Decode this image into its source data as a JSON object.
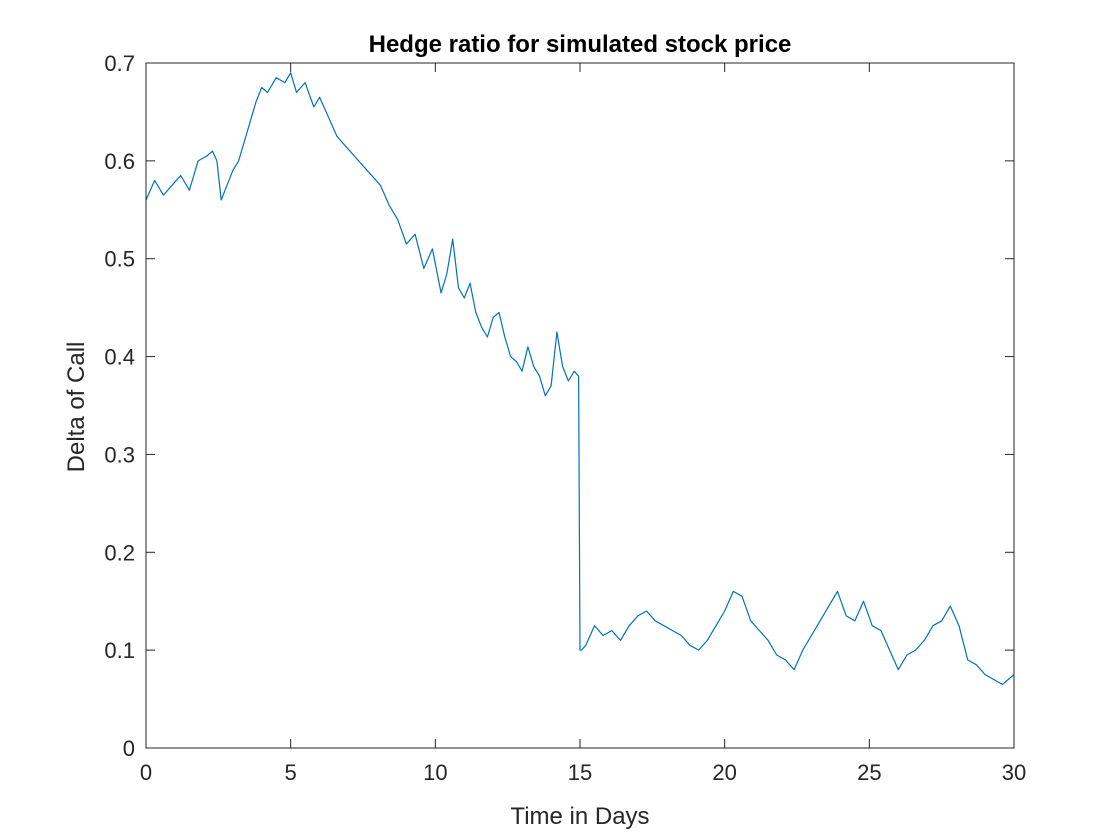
{
  "chart_data": {
    "type": "line",
    "title": "Hedge ratio for simulated stock price",
    "xlabel": "Time in Days",
    "ylabel": "Delta of Call",
    "xlim": [
      0,
      30
    ],
    "ylim": [
      0,
      0.7
    ],
    "xticks": [
      0,
      5,
      10,
      15,
      20,
      25,
      30
    ],
    "yticks": [
      0,
      0.1,
      0.2,
      0.3,
      0.4,
      0.5,
      0.6,
      0.7
    ],
    "xtick_labels": [
      "0",
      "5",
      "10",
      "15",
      "20",
      "25",
      "30"
    ],
    "ytick_labels": [
      "0",
      "0.1",
      "0.2",
      "0.3",
      "0.4",
      "0.5",
      "0.6",
      "0.7"
    ],
    "grid": false,
    "box": true,
    "series": [
      {
        "color": "#0072BD",
        "x": [
          0,
          0.3,
          0.6,
          0.9,
          1.2,
          1.5,
          1.8,
          2.1,
          2.3,
          2.45,
          2.6,
          2.8,
          3.0,
          3.2,
          3.5,
          3.8,
          4.0,
          4.2,
          4.5,
          4.8,
          5.0,
          5.2,
          5.5,
          5.8,
          6.0,
          6.3,
          6.6,
          6.9,
          7.2,
          7.5,
          7.8,
          8.1,
          8.4,
          8.7,
          9.0,
          9.3,
          9.6,
          9.9,
          10.2,
          10.4,
          10.6,
          10.8,
          11.0,
          11.2,
          11.4,
          11.6,
          11.8,
          12.0,
          12.2,
          12.4,
          12.6,
          12.8,
          13.0,
          13.2,
          13.4,
          13.6,
          13.8,
          14.0,
          14.2,
          14.4,
          14.6,
          14.8,
          14.95,
          15.0,
          15.05,
          15.2,
          15.5,
          15.8,
          16.1,
          16.4,
          16.7,
          17.0,
          17.3,
          17.6,
          17.9,
          18.2,
          18.5,
          18.8,
          19.1,
          19.4,
          19.7,
          20.0,
          20.3,
          20.6,
          20.9,
          21.2,
          21.5,
          21.8,
          22.1,
          22.4,
          22.7,
          23.0,
          23.3,
          23.6,
          23.9,
          24.2,
          24.5,
          24.8,
          25.1,
          25.4,
          25.7,
          26.0,
          26.3,
          26.6,
          26.9,
          27.2,
          27.5,
          27.8,
          28.1,
          28.4,
          28.7,
          29.0,
          29.3,
          29.6,
          29.8,
          30.0
        ],
        "y": [
          0.56,
          0.58,
          0.565,
          0.575,
          0.585,
          0.57,
          0.6,
          0.605,
          0.61,
          0.6,
          0.56,
          0.575,
          0.59,
          0.6,
          0.63,
          0.66,
          0.675,
          0.67,
          0.685,
          0.68,
          0.69,
          0.67,
          0.68,
          0.655,
          0.665,
          0.645,
          0.625,
          0.615,
          0.605,
          0.595,
          0.585,
          0.575,
          0.555,
          0.54,
          0.515,
          0.525,
          0.49,
          0.51,
          0.465,
          0.485,
          0.52,
          0.47,
          0.46,
          0.475,
          0.445,
          0.43,
          0.42,
          0.44,
          0.445,
          0.42,
          0.4,
          0.395,
          0.385,
          0.41,
          0.39,
          0.38,
          0.36,
          0.37,
          0.425,
          0.39,
          0.375,
          0.385,
          0.38,
          0.1,
          0.1,
          0.105,
          0.125,
          0.115,
          0.12,
          0.11,
          0.125,
          0.135,
          0.14,
          0.13,
          0.125,
          0.12,
          0.115,
          0.105,
          0.1,
          0.11,
          0.125,
          0.14,
          0.16,
          0.155,
          0.13,
          0.12,
          0.11,
          0.095,
          0.09,
          0.08,
          0.1,
          0.115,
          0.13,
          0.145,
          0.16,
          0.135,
          0.13,
          0.15,
          0.125,
          0.12,
          0.1,
          0.08,
          0.095,
          0.1,
          0.11,
          0.125,
          0.13,
          0.145,
          0.125,
          0.09,
          0.085,
          0.075,
          0.07,
          0.065,
          0.07,
          0.075
        ]
      }
    ]
  }
}
